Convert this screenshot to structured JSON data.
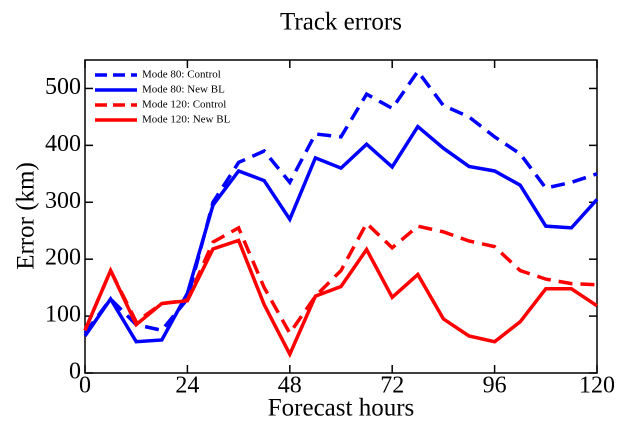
{
  "chart_data": {
    "type": "line",
    "title": "Track errors",
    "x_label": "Forecast hours",
    "y_label": "Error (km)",
    "x": [
      0,
      6,
      12,
      18,
      24,
      30,
      36,
      42,
      48,
      54,
      60,
      66,
      72,
      78,
      84,
      90,
      96,
      102,
      108,
      114,
      120
    ],
    "series": [
      {
        "name": "Mode  80: Control",
        "color": "#0000ff",
        "dash": true,
        "values": [
          70,
          130,
          85,
          75,
          130,
          300,
          370,
          390,
          335,
          420,
          415,
          490,
          465,
          530,
          470,
          450,
          415,
          385,
          325,
          335,
          350
        ]
      },
      {
        "name": "Mode  80: New BL",
        "color": "#0000ff",
        "dash": false,
        "values": [
          65,
          130,
          55,
          58,
          140,
          295,
          355,
          338,
          270,
          378,
          360,
          402,
          362,
          433,
          395,
          363,
          355,
          330,
          258,
          255,
          305
        ]
      },
      {
        "name": "Mode 120: Control",
        "color": "#ff0000",
        "dash": true,
        "values": [
          75,
          180,
          90,
          122,
          128,
          230,
          255,
          150,
          70,
          135,
          180,
          263,
          220,
          258,
          248,
          232,
          222,
          180,
          165,
          157,
          155
        ]
      },
      {
        "name": "Mode 120: New BL",
        "color": "#ff0000",
        "dash": false,
        "values": [
          75,
          180,
          85,
          122,
          127,
          218,
          233,
          120,
          33,
          135,
          152,
          217,
          133,
          173,
          95,
          65,
          55,
          90,
          148,
          148,
          118
        ]
      }
    ],
    "xlim": [
      0,
      120
    ],
    "xticks": [
      0,
      24,
      48,
      72,
      96,
      120
    ],
    "ylim": [
      0,
      550
    ],
    "yticks": [
      0,
      100,
      200,
      300,
      400,
      500
    ],
    "legend": "upper left"
  }
}
